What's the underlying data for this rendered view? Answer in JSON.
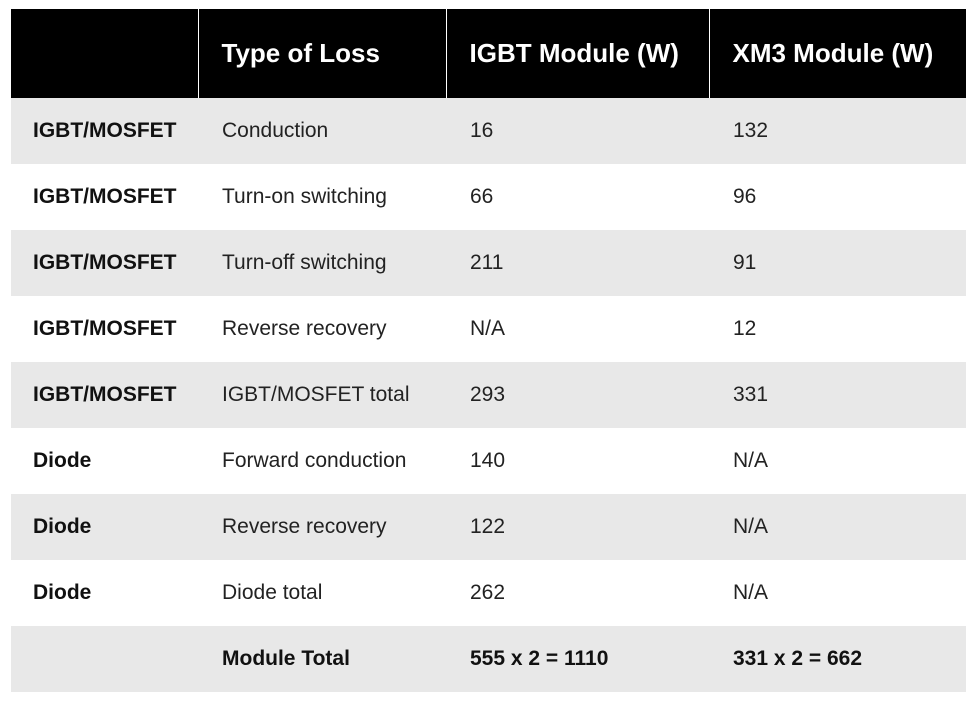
{
  "table": {
    "headers": [
      "",
      "Type of Loss",
      "IGBT Module (W)",
      "XM3 Module (W)"
    ],
    "rows": [
      [
        "IGBT/MOSFET",
        "Conduction",
        "16",
        "132"
      ],
      [
        "IGBT/MOSFET",
        "Turn-on switching",
        "66",
        "96"
      ],
      [
        "IGBT/MOSFET",
        "Turn-off switching",
        "211",
        "91"
      ],
      [
        "IGBT/MOSFET",
        "Reverse recovery",
        "N/A",
        "12"
      ],
      [
        "IGBT/MOSFET",
        "IGBT/MOSFET total",
        "293",
        "331"
      ],
      [
        "Diode",
        "Forward conduction",
        "140",
        "N/A"
      ],
      [
        "Diode",
        "Reverse recovery",
        "122",
        "N/A"
      ],
      [
        "Diode",
        "Diode total",
        "262",
        "N/A"
      ],
      [
        "",
        "Module Total",
        "555 x 2 = 1110",
        "331 x 2 = 662"
      ]
    ]
  }
}
